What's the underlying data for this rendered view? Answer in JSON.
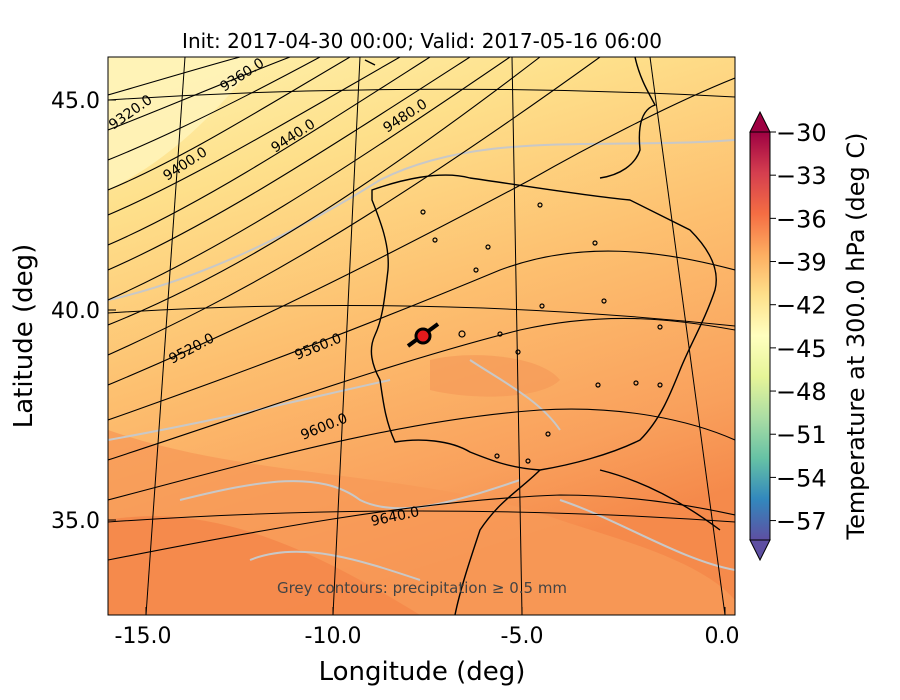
{
  "title": "Init: 2017-04-30 00:00; Valid: 2017-05-16 06:00",
  "x_axis": {
    "label": "Longitude (deg)",
    "ticks": [
      "-15.0",
      "-10.0",
      "-5.0",
      "0.0"
    ]
  },
  "y_axis": {
    "label": "Latitude (deg)",
    "ticks": [
      "45.0",
      "40.0",
      "35.0"
    ]
  },
  "colorbar": {
    "label": "Temperature at 300.0 hPa (deg C)",
    "ticks": [
      "−30",
      "−33",
      "−36",
      "−39",
      "−42",
      "−45",
      "−48",
      "−51",
      "−54",
      "−57"
    ],
    "range": [
      -57,
      -30
    ],
    "colors": [
      "#5e4fa2",
      "#3288bd",
      "#66c2a5",
      "#abdda4",
      "#e6f598",
      "#ffffbf",
      "#fee08b",
      "#fdae61",
      "#f46d43",
      "#d53e4f",
      "#9e0142"
    ]
  },
  "contour_labels": [
    "9320.0",
    "9360.0",
    "9400.0",
    "9440.0",
    "9480.0",
    "9520.0",
    "9560.0",
    "9600.0",
    "9640.0"
  ],
  "note": "Grey contours: precipitation  ≥  0.5 mm",
  "marker": {
    "name": "location-marker",
    "color": "#e41a1c"
  }
}
